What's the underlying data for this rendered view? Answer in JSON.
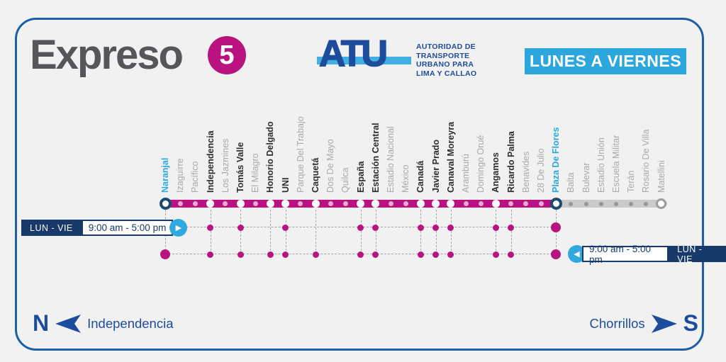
{
  "title": {
    "name": "Expreso",
    "number": "5"
  },
  "logo": {
    "wordmark": "ATU",
    "lines": [
      "AUTORIDAD DE",
      "TRANSPORTE",
      "URBANO PARA",
      "LIMA Y CALLAO"
    ]
  },
  "banner": {
    "label": "LUNES A VIERNES"
  },
  "schedule_left": {
    "days": "LUN - VIE",
    "hours": "9:00 am - 5:00 pm",
    "arrow_icon": "right-arrow"
  },
  "schedule_right": {
    "days": "LUN - VIE",
    "hours": "9:00 am - 5:00 pm",
    "arrow_icon": "left-arrow"
  },
  "compass": {
    "north_letter": "N",
    "north_place": "Independencia",
    "south_letter": "S",
    "south_place": "Chorrillos"
  },
  "colors": {
    "express_line": "#bb1180",
    "local_line": "#c9cacc",
    "badge": "#b9137f",
    "banner_blue": "#2ba7de",
    "terminal_label_blue": "#29a9e0",
    "navy": "#183a6b",
    "logo_blue": "#1d4c9c",
    "title_gray": "#55565a",
    "minor_dot_pink": "#e9a8d0",
    "row_dot": "#b81480"
  },
  "route": {
    "stations": [
      {
        "name": "Naranjal",
        "dot": "terminal",
        "label": "terminal",
        "row2": true,
        "row3": true
      },
      {
        "name": "Izaguirre",
        "dot": "minor",
        "label": "gray",
        "row2": false,
        "row3": false
      },
      {
        "name": "Pacífico",
        "dot": "minor",
        "label": "gray",
        "row2": false,
        "row3": false
      },
      {
        "name": "Independencia",
        "dot": "express",
        "label": "bold",
        "row2": true,
        "row3": true
      },
      {
        "name": "Los Jazmines",
        "dot": "minor",
        "label": "gray",
        "row2": false,
        "row3": false
      },
      {
        "name": "Tomás Valle",
        "dot": "express",
        "label": "bold",
        "row2": true,
        "row3": true
      },
      {
        "name": "El Milagro",
        "dot": "minor",
        "label": "gray",
        "row2": false,
        "row3": false
      },
      {
        "name": "Honorio Delgado",
        "dot": "express",
        "label": "bold",
        "row2": false,
        "row3": true
      },
      {
        "name": "UNI",
        "dot": "express",
        "label": "bold",
        "row2": true,
        "row3": true
      },
      {
        "name": "Parque Del Trabajo",
        "dot": "minor",
        "label": "gray",
        "row2": false,
        "row3": false
      },
      {
        "name": "Caquetá",
        "dot": "express",
        "label": "bold",
        "row2": false,
        "row3": true
      },
      {
        "name": "Dos De Mayo",
        "dot": "minor",
        "label": "gray",
        "row2": false,
        "row3": false
      },
      {
        "name": "Quilca",
        "dot": "minor",
        "label": "gray",
        "row2": false,
        "row3": false
      },
      {
        "name": "España",
        "dot": "express",
        "label": "bold",
        "row2": true,
        "row3": true
      },
      {
        "name": "Estación Central",
        "dot": "express",
        "label": "bold",
        "row2": true,
        "row3": true
      },
      {
        "name": "Estadio Nacional",
        "dot": "minor",
        "label": "gray",
        "row2": false,
        "row3": false
      },
      {
        "name": "México",
        "dot": "minor",
        "label": "gray",
        "row2": false,
        "row3": false
      },
      {
        "name": "Canadá",
        "dot": "express",
        "label": "bold",
        "row2": true,
        "row3": true
      },
      {
        "name": "Javier Prado",
        "dot": "express",
        "label": "bold",
        "row2": true,
        "row3": true
      },
      {
        "name": "Canaval Moreyra",
        "dot": "express",
        "label": "bold",
        "row2": true,
        "row3": true
      },
      {
        "name": "Aramburú",
        "dot": "minor",
        "label": "gray",
        "row2": false,
        "row3": false
      },
      {
        "name": "Domingo Orué",
        "dot": "minor",
        "label": "gray",
        "row2": false,
        "row3": false
      },
      {
        "name": "Angamos",
        "dot": "express",
        "label": "bold",
        "row2": true,
        "row3": true
      },
      {
        "name": "Ricardo Palma",
        "dot": "minor",
        "label": "bold",
        "row2": true,
        "row3": true
      },
      {
        "name": "Benavides",
        "dot": "minor",
        "label": "gray",
        "row2": false,
        "row3": false
      },
      {
        "name": "28 De Julio",
        "dot": "minor",
        "label": "gray",
        "row2": false,
        "row3": false
      },
      {
        "name": "Plaza De Flores",
        "dot": "terminal",
        "label": "terminal",
        "row2": true,
        "row3": true
      },
      {
        "name": "Balta",
        "dot": "gray",
        "label": "gray",
        "row2": false,
        "row3": false
      },
      {
        "name": "Bulevar",
        "dot": "gray",
        "label": "gray",
        "row2": false,
        "row3": false
      },
      {
        "name": "Estadio Unión",
        "dot": "gray",
        "label": "gray",
        "row2": false,
        "row3": false
      },
      {
        "name": "Escuela Militar",
        "dot": "gray",
        "label": "gray",
        "row2": false,
        "row3": false
      },
      {
        "name": "Terán",
        "dot": "gray",
        "label": "gray",
        "row2": false,
        "row3": false
      },
      {
        "name": "Rosario De Villa",
        "dot": "gray",
        "label": "gray",
        "row2": false,
        "row3": false
      },
      {
        "name": "Matellini",
        "dot": "gray-terminal",
        "label": "gray",
        "row2": false,
        "row3": false
      }
    ]
  }
}
